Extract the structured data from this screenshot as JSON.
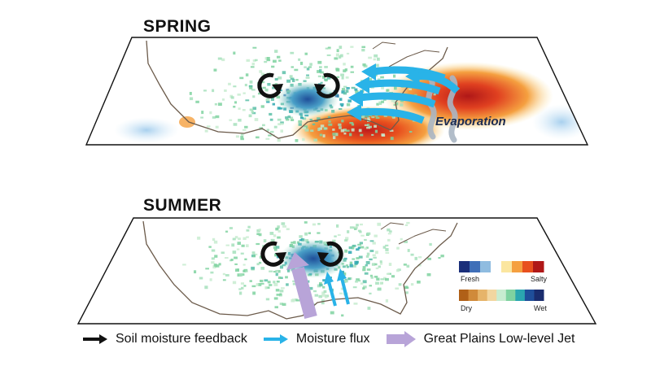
{
  "panels": {
    "spring": {
      "title": "SPRING",
      "annotation": "Evaporation"
    },
    "summer": {
      "title": "SUMMER"
    }
  },
  "colorbars": {
    "salinity": {
      "low_label": "Fresh",
      "high_label": "Salty",
      "colors": [
        "#1b2f7a",
        "#3f6fb8",
        "#8fbce0",
        "#ffffff",
        "#fbe6a0",
        "#f5a040",
        "#e8501e",
        "#b01818"
      ]
    },
    "soil": {
      "low_label": "Dry",
      "high_label": "Wet",
      "colors": [
        "#b06018",
        "#d08a3a",
        "#e6b46a",
        "#f2d6a0",
        "#c8ecd0",
        "#7fd2a0",
        "#2aa6b0",
        "#1f4f9a",
        "#1a2d6e"
      ]
    }
  },
  "legend": {
    "items": [
      {
        "label": "Soil moisture feedback",
        "color": "#111111",
        "icon": "black-arrow-icon"
      },
      {
        "label": "Moisture flux",
        "color": "#29b3e8",
        "icon": "blue-arrow-icon"
      },
      {
        "label": "Great Plains Low-level Jet",
        "color": "#b8a4d8",
        "icon": "purple-arrow-icon"
      }
    ]
  },
  "colors": {
    "feedback_arrow": "#111111",
    "moisture_flux": "#29b3e8",
    "low_level_jet": "#b8a4d8",
    "coastline": "#6b5a4a",
    "wet_cluster": "#2a5aa8",
    "salty": "#c8201a"
  }
}
